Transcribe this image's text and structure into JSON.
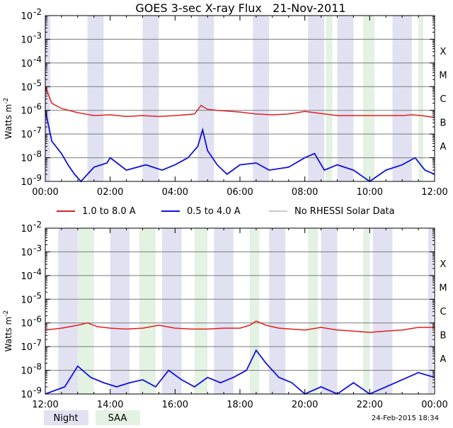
{
  "chart_data": [
    {
      "type": "line",
      "title": "GOES 3-sec X-ray Flux   21-Nov-2011",
      "xlabel": "",
      "ylabel": "Watts m",
      "ylabel_sup": "-2",
      "yscale": "log",
      "ylim": [
        1e-09,
        0.01
      ],
      "x_unit": "hours",
      "xlim": [
        0,
        12
      ],
      "x_ticks": [
        0,
        2,
        4,
        6,
        8,
        10,
        12
      ],
      "x_tick_labels": [
        "00:00",
        "02:00",
        "04:00",
        "06:00",
        "08:00",
        "10:00",
        "12:00"
      ],
      "y_ticks": [
        {
          "base": "10",
          "exp": "-2"
        },
        {
          "base": "10",
          "exp": "-3"
        },
        {
          "base": "10",
          "exp": "-4"
        },
        {
          "base": "10",
          "exp": "-5"
        },
        {
          "base": "10",
          "exp": "-6"
        },
        {
          "base": "10",
          "exp": "-7"
        },
        {
          "base": "10",
          "exp": "-8"
        },
        {
          "base": "10",
          "exp": "-9"
        }
      ],
      "classes": [
        "X",
        "M",
        "C",
        "B",
        "A"
      ],
      "night_bands": [
        [
          0,
          0.15
        ],
        [
          1.3,
          1.8
        ],
        [
          3.0,
          3.5
        ],
        [
          4.7,
          5.2
        ],
        [
          6.4,
          6.9
        ],
        [
          8.1,
          8.6
        ],
        [
          9.0,
          9.5
        ],
        [
          10.7,
          11.3
        ]
      ],
      "saa_bands": [
        [
          8.65,
          8.85
        ],
        [
          9.8,
          10.15
        ],
        [
          11.5,
          11.65
        ]
      ],
      "series": [
        {
          "name": "1.0 to 8.0 A",
          "color": "#e02020",
          "x": [
            0,
            0.2,
            0.5,
            1.0,
            1.5,
            2.0,
            2.5,
            3.0,
            3.5,
            4.0,
            4.6,
            4.8,
            5.0,
            5.3,
            6.0,
            6.5,
            7.0,
            7.5,
            8.0,
            8.3,
            9.0,
            9.5,
            10.0,
            10.5,
            11.0,
            11.3,
            11.6,
            12.0
          ],
          "y": [
            1e-05,
            2e-06,
            1.2e-06,
            8e-07,
            6e-07,
            6.5e-07,
            5.5e-07,
            6e-07,
            5.5e-07,
            6e-07,
            7e-07,
            1.6e-06,
            1.1e-06,
            1e-06,
            8.5e-07,
            7e-07,
            6.5e-07,
            7e-07,
            9e-07,
            8e-07,
            6e-07,
            6e-07,
            6e-07,
            6e-07,
            6e-07,
            6.5e-07,
            6e-07,
            5e-07
          ]
        },
        {
          "name": "0.5 to 4.0 A",
          "color": "#1010e0",
          "x": [
            0,
            0.2,
            0.5,
            0.7,
            0.9,
            1.1,
            1.5,
            1.9,
            2.0,
            2.5,
            3.1,
            3.6,
            4.0,
            4.4,
            4.7,
            4.85,
            5.0,
            5.3,
            5.6,
            6.0,
            6.5,
            6.9,
            7.5,
            8.0,
            8.3,
            8.6,
            9.0,
            9.5,
            10.0,
            10.5,
            11.0,
            11.4,
            11.7,
            12.0
          ],
          "y": [
            1e-06,
            5e-08,
            1.5e-08,
            5e-09,
            2e-09,
            1e-09,
            4e-09,
            6e-09,
            1e-08,
            3e-09,
            5e-09,
            3e-09,
            5e-09,
            1e-08,
            3e-08,
            1.5e-07,
            2e-08,
            5e-09,
            2e-09,
            5e-09,
            6e-09,
            3e-09,
            4e-09,
            1e-08,
            1.5e-08,
            3e-09,
            5e-09,
            3e-09,
            1e-09,
            3e-09,
            5e-09,
            1e-08,
            3e-09,
            2e-09
          ]
        }
      ]
    },
    {
      "type": "line",
      "title": "",
      "xlabel": "",
      "ylabel": "Watts m",
      "ylabel_sup": "-2",
      "yscale": "log",
      "ylim": [
        1e-09,
        0.01
      ],
      "x_unit": "hours",
      "xlim": [
        12,
        24
      ],
      "x_ticks": [
        12,
        14,
        16,
        18,
        20,
        22,
        24
      ],
      "x_tick_labels": [
        "12:00",
        "14:00",
        "16:00",
        "18:00",
        "20:00",
        "22:00",
        "00:00"
      ],
      "y_ticks": [
        {
          "base": "10",
          "exp": "-2"
        },
        {
          "base": "10",
          "exp": "-3"
        },
        {
          "base": "10",
          "exp": "-4"
        },
        {
          "base": "10",
          "exp": "-5"
        },
        {
          "base": "10",
          "exp": "-6"
        },
        {
          "base": "10",
          "exp": "-7"
        },
        {
          "base": "10",
          "exp": "-8"
        },
        {
          "base": "10",
          "exp": "-9"
        }
      ],
      "classes": [
        "X",
        "M",
        "C",
        "B",
        "A"
      ],
      "night_bands": [
        [
          12.4,
          13.0
        ],
        [
          14.0,
          14.6
        ],
        [
          15.6,
          16.2
        ],
        [
          17.2,
          17.8
        ],
        [
          18.9,
          19.4
        ],
        [
          20.5,
          21.0
        ],
        [
          22.1,
          22.7
        ],
        [
          23.8,
          23.95
        ]
      ],
      "saa_bands": [
        [
          13.0,
          13.5
        ],
        [
          14.9,
          15.4
        ],
        [
          16.6,
          17.0
        ],
        [
          18.3,
          18.6
        ],
        [
          20.1,
          20.4
        ],
        [
          21.8,
          22.0
        ]
      ],
      "series": [
        {
          "name": "1.0 to 8.0 A",
          "color": "#e02020",
          "x": [
            12.0,
            12.5,
            13.0,
            13.3,
            13.6,
            14.0,
            14.5,
            15.0,
            15.5,
            16.0,
            16.5,
            17.0,
            17.5,
            18.0,
            18.3,
            18.5,
            18.8,
            19.2,
            20.0,
            20.5,
            21.0,
            21.5,
            22.0,
            22.5,
            23.0,
            23.5,
            24.0
          ],
          "y": [
            5e-07,
            6e-07,
            8e-07,
            1e-06,
            7e-07,
            6e-07,
            5.5e-07,
            6e-07,
            8e-07,
            6e-07,
            5.5e-07,
            5.5e-07,
            6e-07,
            6e-07,
            8e-07,
            1.2e-06,
            8e-07,
            6e-07,
            5e-07,
            6.5e-07,
            5e-07,
            4.5e-07,
            4e-07,
            4.5e-07,
            5e-07,
            6.5e-07,
            6.5e-07
          ]
        },
        {
          "name": "0.5 to 4.0 A",
          "color": "#1010e0",
          "x": [
            12.0,
            12.6,
            13.0,
            13.4,
            13.8,
            14.2,
            14.6,
            15.0,
            15.4,
            15.8,
            16.2,
            16.6,
            17.0,
            17.4,
            17.8,
            18.2,
            18.5,
            18.8,
            19.2,
            19.6,
            20.0,
            20.5,
            21.0,
            21.5,
            22.0,
            22.5,
            23.0,
            23.5,
            24.0
          ],
          "y": [
            1e-09,
            2e-09,
            1.5e-08,
            5e-09,
            3e-09,
            2e-09,
            3e-09,
            4e-09,
            2e-09,
            1e-08,
            4e-09,
            2e-09,
            5e-09,
            3e-09,
            5e-09,
            1e-08,
            7e-08,
            2e-08,
            5e-09,
            3e-09,
            1e-09,
            2e-09,
            1e-09,
            3e-09,
            1e-09,
            2e-09,
            4e-09,
            8e-09,
            5e-09
          ]
        }
      ]
    }
  ],
  "legend": {
    "items": [
      {
        "label": "1.0 to 8.0 A",
        "color": "#e02020"
      },
      {
        "label": "0.5 to 4.0 A",
        "color": "#1010e0"
      },
      {
        "label": "No RHESSI Solar Data",
        "color": "#909090"
      }
    ],
    "night_label": "Night",
    "saa_label": "SAA",
    "night_color": "#e1e1f2",
    "saa_color": "#e3f2e3"
  },
  "timestamp": "24-Feb-2015 18:34"
}
